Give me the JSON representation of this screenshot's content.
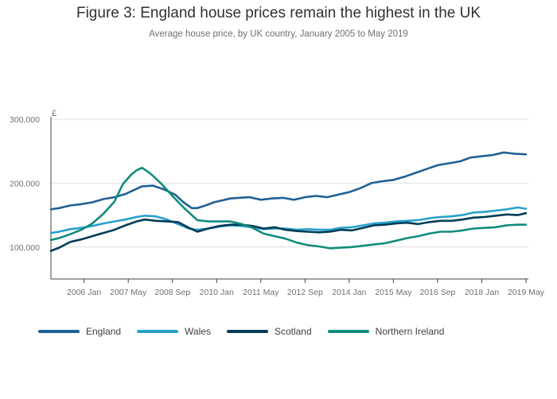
{
  "title": "Figure 3: England house prices remain the highest in the UK",
  "subtitle": "Average house price, by UK country, January 2005 to May 2019",
  "chart_data": {
    "type": "line",
    "ylabel": "£",
    "xlabel": "",
    "ylim": [
      50000,
      300000
    ],
    "xlim": [
      "2005-01",
      "2019-05"
    ],
    "yticks": [
      100000,
      200000,
      300000
    ],
    "ytick_labels": [
      "100,000",
      "200,000",
      "300,000"
    ],
    "xticks": [
      "2006-01",
      "2007-05",
      "2008-09",
      "2010-01",
      "2011-05",
      "2012-09",
      "2014-01",
      "2015-05",
      "2016-09",
      "2018-01",
      "2019-05"
    ],
    "xtick_labels": [
      "2006 Jan",
      "2007 May",
      "2008 Sep",
      "2010 Jan",
      "2011 May",
      "2012 Sep",
      "2014 Jan",
      "2015 May",
      "2016 Sep",
      "2018 Jan",
      "2019 May"
    ],
    "grid": "horizontal",
    "legend_position": "bottom",
    "series": [
      {
        "name": "England",
        "color": "#206095",
        "points": [
          [
            "2005-01",
            159000
          ],
          [
            "2005-04",
            161000
          ],
          [
            "2005-08",
            165000
          ],
          [
            "2005-12",
            167000
          ],
          [
            "2006-04",
            170000
          ],
          [
            "2006-08",
            175000
          ],
          [
            "2006-12",
            178000
          ],
          [
            "2007-04",
            183000
          ],
          [
            "2007-08",
            191000
          ],
          [
            "2007-10",
            195000
          ],
          [
            "2008-02",
            196000
          ],
          [
            "2008-06",
            190000
          ],
          [
            "2008-10",
            182000
          ],
          [
            "2009-01",
            170000
          ],
          [
            "2009-04",
            161000
          ],
          [
            "2009-06",
            161000
          ],
          [
            "2009-09",
            165000
          ],
          [
            "2009-12",
            170000
          ],
          [
            "2010-03",
            173000
          ],
          [
            "2010-06",
            176000
          ],
          [
            "2010-09",
            177000
          ],
          [
            "2011-01",
            178000
          ],
          [
            "2011-05",
            174000
          ],
          [
            "2011-09",
            176000
          ],
          [
            "2012-01",
            177000
          ],
          [
            "2012-05",
            174000
          ],
          [
            "2012-09",
            178000
          ],
          [
            "2013-01",
            180000
          ],
          [
            "2013-05",
            178000
          ],
          [
            "2013-09",
            182000
          ],
          [
            "2014-01",
            186000
          ],
          [
            "2014-05",
            192000
          ],
          [
            "2014-09",
            200000
          ],
          [
            "2015-01",
            203000
          ],
          [
            "2015-05",
            205000
          ],
          [
            "2015-09",
            210000
          ],
          [
            "2016-01",
            216000
          ],
          [
            "2016-05",
            222000
          ],
          [
            "2016-09",
            228000
          ],
          [
            "2017-01",
            231000
          ],
          [
            "2017-05",
            234000
          ],
          [
            "2017-09",
            240000
          ],
          [
            "2018-01",
            242000
          ],
          [
            "2018-05",
            244000
          ],
          [
            "2018-09",
            248000
          ],
          [
            "2019-01",
            246000
          ],
          [
            "2019-05",
            245000
          ]
        ]
      },
      {
        "name": "Wales",
        "color": "#27a0cc",
        "points": [
          [
            "2005-01",
            122000
          ],
          [
            "2005-04",
            124000
          ],
          [
            "2005-08",
            128000
          ],
          [
            "2005-12",
            130000
          ],
          [
            "2006-04",
            133000
          ],
          [
            "2006-08",
            137000
          ],
          [
            "2006-12",
            140000
          ],
          [
            "2007-04",
            143000
          ],
          [
            "2007-08",
            147000
          ],
          [
            "2007-11",
            149000
          ],
          [
            "2008-03",
            148000
          ],
          [
            "2008-07",
            143000
          ],
          [
            "2008-11",
            136000
          ],
          [
            "2009-03",
            129000
          ],
          [
            "2009-06",
            127000
          ],
          [
            "2009-10",
            129000
          ],
          [
            "2010-02",
            132000
          ],
          [
            "2010-06",
            134000
          ],
          [
            "2010-10",
            133000
          ],
          [
            "2011-02",
            131000
          ],
          [
            "2011-06",
            128000
          ],
          [
            "2011-10",
            129000
          ],
          [
            "2012-02",
            129000
          ],
          [
            "2012-06",
            127000
          ],
          [
            "2012-10",
            128000
          ],
          [
            "2013-02",
            127000
          ],
          [
            "2013-06",
            127000
          ],
          [
            "2013-10",
            130000
          ],
          [
            "2014-02",
            131000
          ],
          [
            "2014-06",
            134000
          ],
          [
            "2014-10",
            137000
          ],
          [
            "2015-02",
            138000
          ],
          [
            "2015-06",
            140000
          ],
          [
            "2015-10",
            141000
          ],
          [
            "2016-02",
            142000
          ],
          [
            "2016-06",
            145000
          ],
          [
            "2016-10",
            147000
          ],
          [
            "2017-02",
            148000
          ],
          [
            "2017-06",
            150000
          ],
          [
            "2017-10",
            154000
          ],
          [
            "2018-02",
            155000
          ],
          [
            "2018-06",
            157000
          ],
          [
            "2018-10",
            159000
          ],
          [
            "2019-02",
            162000
          ],
          [
            "2019-05",
            160000
          ]
        ]
      },
      {
        "name": "Scotland",
        "color": "#003c57",
        "points": [
          [
            "2005-01",
            94000
          ],
          [
            "2005-04",
            99000
          ],
          [
            "2005-08",
            108000
          ],
          [
            "2005-12",
            112000
          ],
          [
            "2006-04",
            117000
          ],
          [
            "2006-08",
            122000
          ],
          [
            "2006-12",
            127000
          ],
          [
            "2007-04",
            134000
          ],
          [
            "2007-08",
            140000
          ],
          [
            "2007-11",
            143000
          ],
          [
            "2008-03",
            141000
          ],
          [
            "2008-07",
            140000
          ],
          [
            "2008-11",
            139000
          ],
          [
            "2009-03",
            130000
          ],
          [
            "2009-06",
            124000
          ],
          [
            "2009-10",
            129000
          ],
          [
            "2010-02",
            133000
          ],
          [
            "2010-06",
            135000
          ],
          [
            "2010-10",
            135000
          ],
          [
            "2011-02",
            133000
          ],
          [
            "2011-06",
            129000
          ],
          [
            "2011-10",
            131000
          ],
          [
            "2012-02",
            127000
          ],
          [
            "2012-06",
            125000
          ],
          [
            "2012-10",
            124000
          ],
          [
            "2013-02",
            123000
          ],
          [
            "2013-06",
            124000
          ],
          [
            "2013-10",
            127000
          ],
          [
            "2014-02",
            126000
          ],
          [
            "2014-06",
            130000
          ],
          [
            "2014-10",
            134000
          ],
          [
            "2015-02",
            135000
          ],
          [
            "2015-06",
            137000
          ],
          [
            "2015-10",
            138000
          ],
          [
            "2016-02",
            136000
          ],
          [
            "2016-06",
            139000
          ],
          [
            "2016-10",
            141000
          ],
          [
            "2017-02",
            141000
          ],
          [
            "2017-06",
            143000
          ],
          [
            "2017-10",
            146000
          ],
          [
            "2018-02",
            147000
          ],
          [
            "2018-06",
            149000
          ],
          [
            "2018-10",
            151000
          ],
          [
            "2019-02",
            150000
          ],
          [
            "2019-05",
            153000
          ]
        ]
      },
      {
        "name": "Northern Ireland",
        "color": "#118c7b",
        "points": [
          [
            "2005-01",
            111000
          ],
          [
            "2005-04",
            114000
          ],
          [
            "2005-08",
            120000
          ],
          [
            "2005-12",
            127000
          ],
          [
            "2006-04",
            137000
          ],
          [
            "2006-08",
            152000
          ],
          [
            "2006-12",
            171000
          ],
          [
            "2007-03",
            198000
          ],
          [
            "2007-06",
            213000
          ],
          [
            "2007-08",
            220000
          ],
          [
            "2007-10",
            224000
          ],
          [
            "2008-01",
            215000
          ],
          [
            "2008-05",
            199000
          ],
          [
            "2008-09",
            180000
          ],
          [
            "2009-01",
            162000
          ],
          [
            "2009-04",
            150000
          ],
          [
            "2009-06",
            142000
          ],
          [
            "2009-10",
            140000
          ],
          [
            "2010-02",
            140000
          ],
          [
            "2010-06",
            140000
          ],
          [
            "2010-10",
            136000
          ],
          [
            "2011-02",
            130000
          ],
          [
            "2011-06",
            121000
          ],
          [
            "2011-10",
            117000
          ],
          [
            "2012-02",
            113000
          ],
          [
            "2012-06",
            107000
          ],
          [
            "2012-10",
            103000
          ],
          [
            "2013-02",
            101000
          ],
          [
            "2013-06",
            98000
          ],
          [
            "2013-10",
            99000
          ],
          [
            "2014-02",
            100000
          ],
          [
            "2014-06",
            102000
          ],
          [
            "2014-10",
            104000
          ],
          [
            "2015-02",
            106000
          ],
          [
            "2015-06",
            110000
          ],
          [
            "2015-10",
            114000
          ],
          [
            "2016-02",
            117000
          ],
          [
            "2016-06",
            121000
          ],
          [
            "2016-10",
            124000
          ],
          [
            "2017-02",
            124000
          ],
          [
            "2017-06",
            126000
          ],
          [
            "2017-10",
            129000
          ],
          [
            "2018-02",
            130000
          ],
          [
            "2018-06",
            131000
          ],
          [
            "2018-10",
            134000
          ],
          [
            "2019-02",
            135000
          ],
          [
            "2019-05",
            135000
          ]
        ]
      }
    ]
  }
}
